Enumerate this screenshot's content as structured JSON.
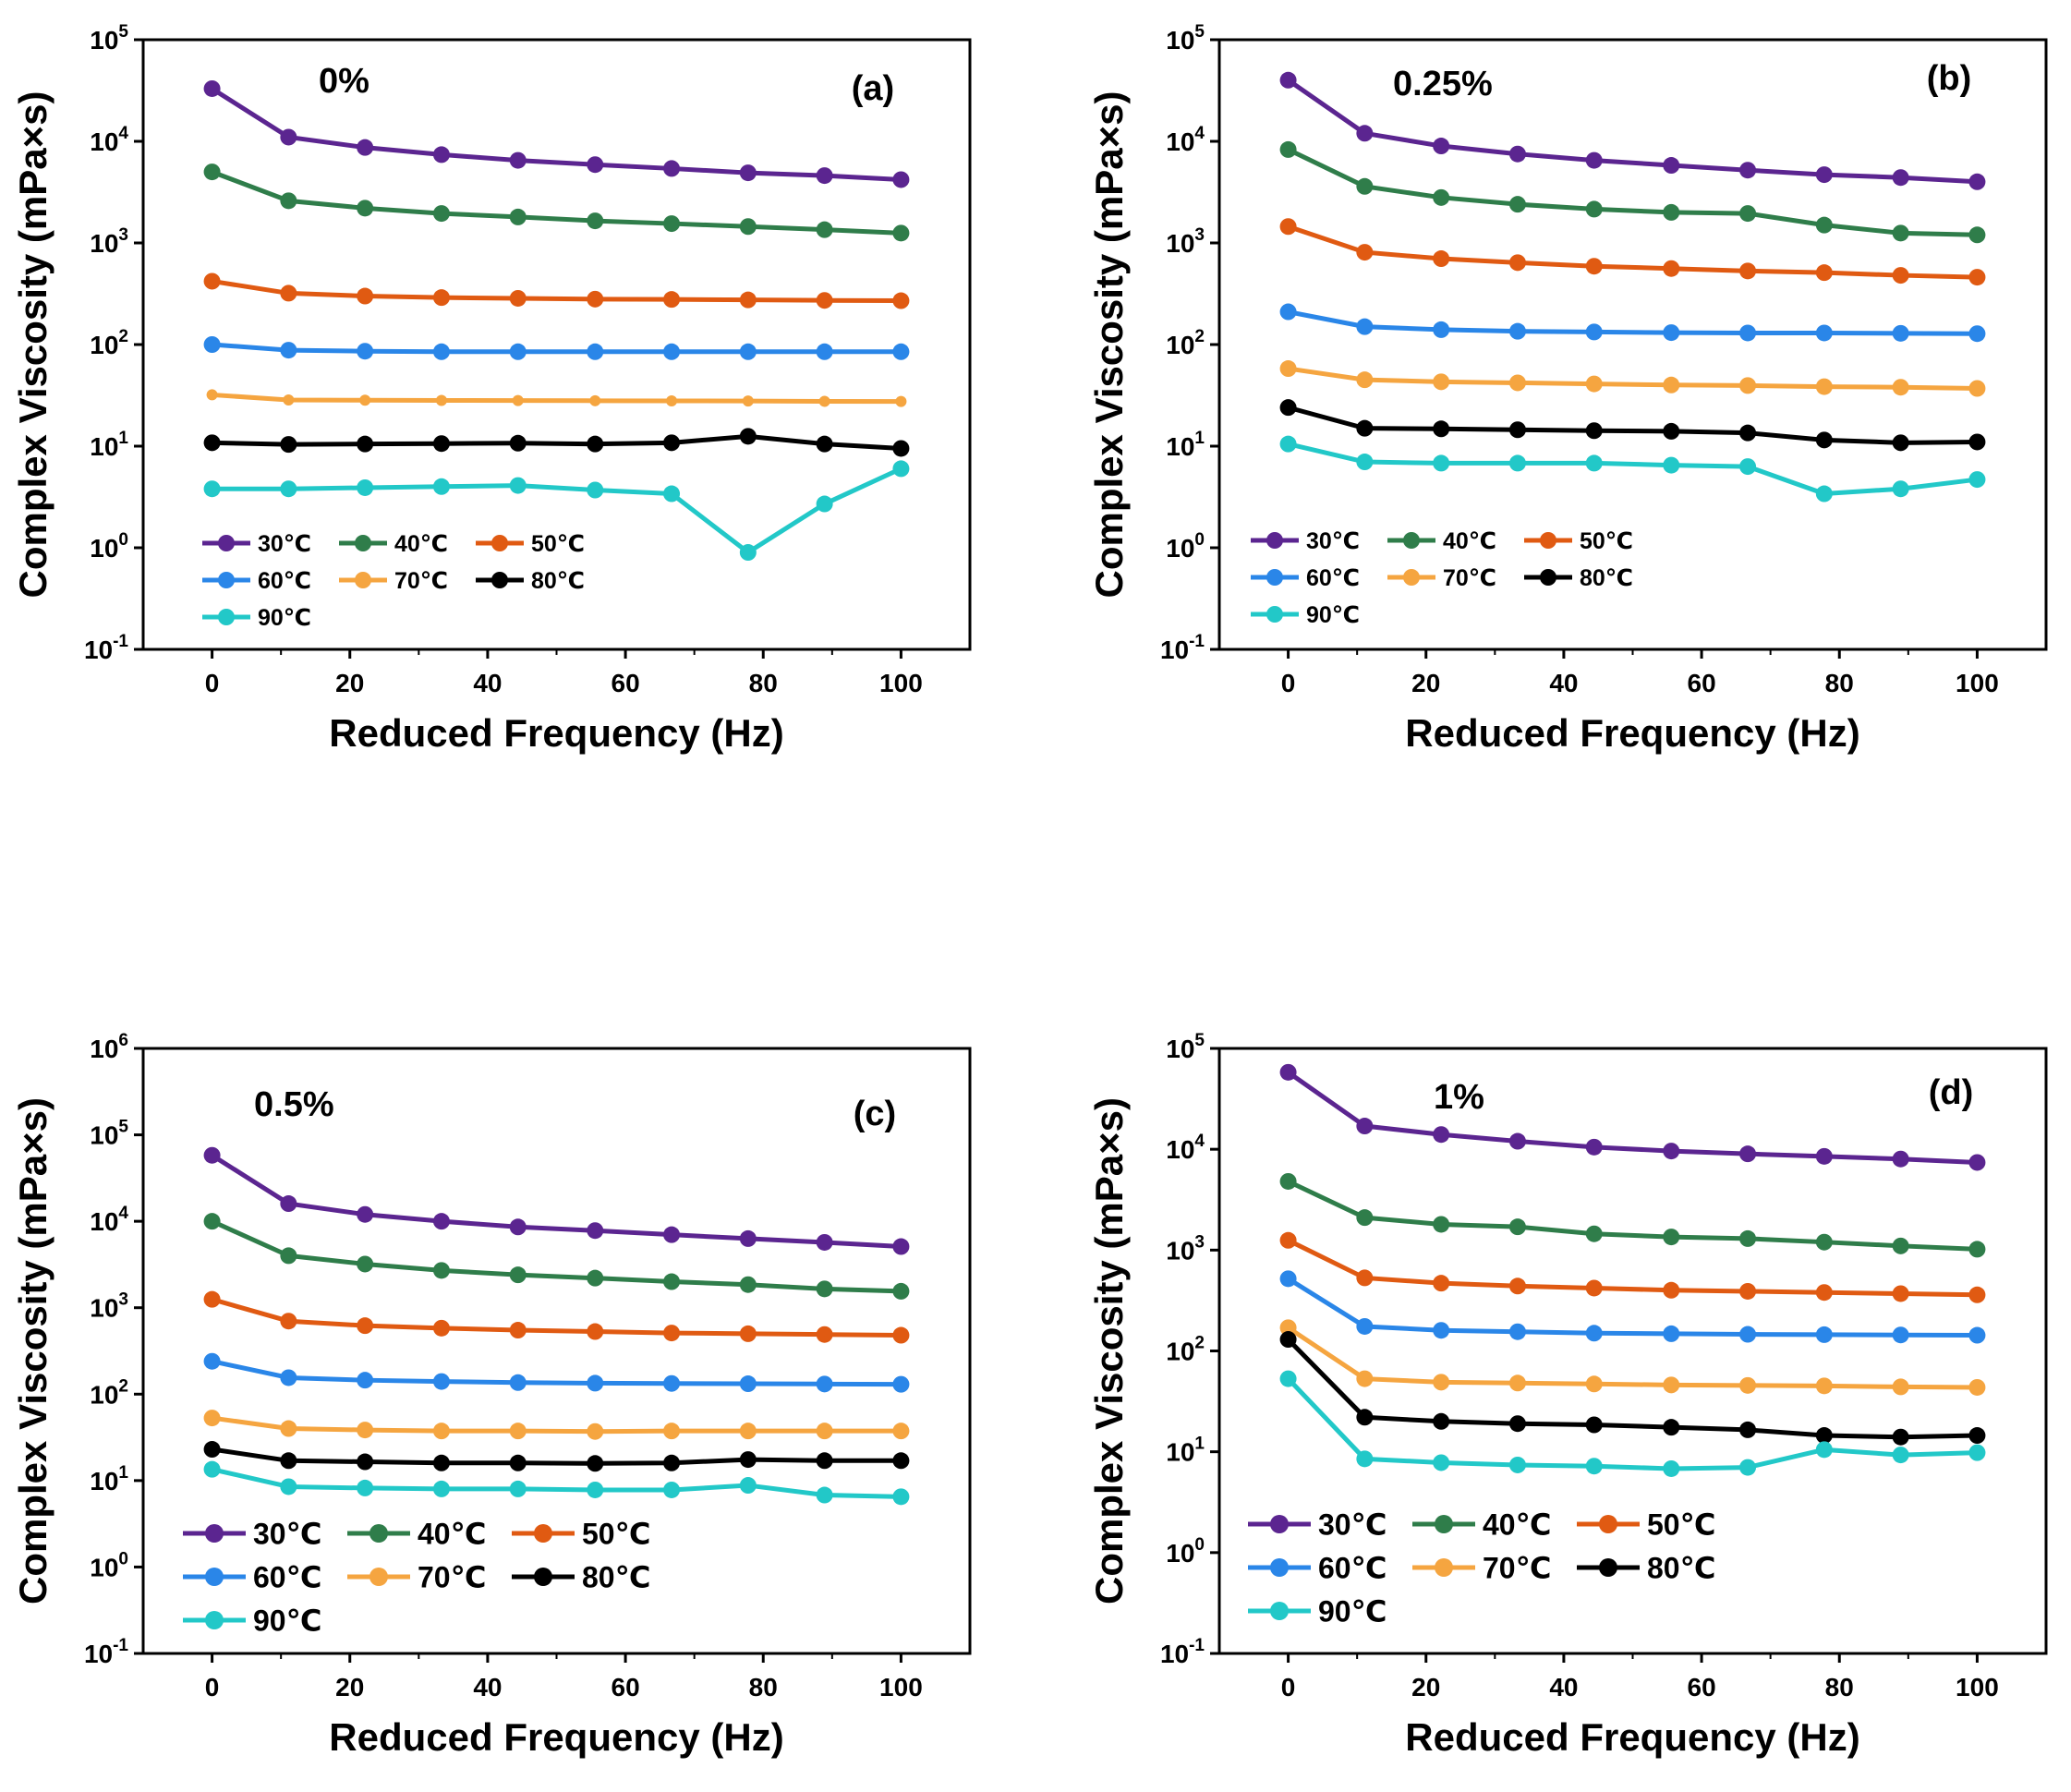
{
  "chart_data": [
    {
      "type": "line",
      "panel_label": "(a)",
      "annotation": "0%",
      "xlabel": "Reduced Frequency (Hz)",
      "ylabel": "Complex Viscosity (mPa×s)",
      "xlim": [
        -10,
        110
      ],
      "xticks": [
        0,
        20,
        40,
        60,
        80,
        100
      ],
      "ylim_log10": [
        -1,
        5
      ],
      "yscale": "log",
      "x": [
        0,
        11.1,
        22.2,
        33.3,
        44.4,
        55.6,
        66.7,
        77.8,
        88.9,
        100
      ],
      "series": [
        {
          "name": "30℃",
          "color": "#5b2590",
          "values": [
            33000,
            11000,
            8700,
            7400,
            6500,
            5900,
            5400,
            4900,
            4600,
            4200
          ]
        },
        {
          "name": "40℃",
          "color": "#2f7d4a",
          "values": [
            5000,
            2600,
            2200,
            1950,
            1800,
            1650,
            1550,
            1450,
            1350,
            1250
          ]
        },
        {
          "name": "50℃",
          "color": "#e05a12",
          "values": [
            420,
            320,
            300,
            290,
            285,
            280,
            278,
            275,
            272,
            270
          ]
        },
        {
          "name": "60℃",
          "color": "#2a86e8",
          "values": [
            100,
            88,
            86,
            85,
            85,
            85,
            85,
            85,
            85,
            85
          ]
        },
        {
          "name": "70℃",
          "color": "#f5a540",
          "values": [
            32,
            28.5,
            28.3,
            28.2,
            28.1,
            28.0,
            27.9,
            27.8,
            27.6,
            27.5
          ]
        },
        {
          "name": "80℃",
          "color": "#000000",
          "values": [
            10.8,
            10.4,
            10.5,
            10.6,
            10.7,
            10.5,
            10.8,
            12.5,
            10.5,
            9.5
          ]
        },
        {
          "name": "90℃",
          "color": "#22c8c8",
          "values": [
            3.8,
            3.8,
            3.9,
            4.0,
            4.1,
            3.7,
            3.4,
            0.9,
            2.7,
            6.0
          ]
        }
      ]
    },
    {
      "type": "line",
      "panel_label": "(b)",
      "annotation": "0.25%",
      "xlabel": "Reduced Frequency (Hz)",
      "ylabel": "Complex Viscosity (mPa×s)",
      "xlim": [
        -10,
        110
      ],
      "xticks": [
        0,
        20,
        40,
        60,
        80,
        100
      ],
      "ylim_log10": [
        -1,
        5
      ],
      "yscale": "log",
      "x": [
        0,
        11.1,
        22.2,
        33.3,
        44.4,
        55.6,
        66.7,
        77.8,
        88.9,
        100
      ],
      "series": [
        {
          "name": "30℃",
          "color": "#5b2590",
          "values": [
            40000,
            12000,
            9000,
            7500,
            6500,
            5800,
            5200,
            4700,
            4400,
            4000
          ]
        },
        {
          "name": "40℃",
          "color": "#2f7d4a",
          "values": [
            8300,
            3600,
            2800,
            2400,
            2150,
            2000,
            1950,
            1500,
            1250,
            1200
          ]
        },
        {
          "name": "50℃",
          "color": "#e05a12",
          "values": [
            1450,
            810,
            700,
            640,
            590,
            560,
            530,
            510,
            480,
            460
          ]
        },
        {
          "name": "60℃",
          "color": "#2a86e8",
          "values": [
            210,
            150,
            140,
            135,
            133,
            131,
            130,
            130,
            129,
            128
          ]
        },
        {
          "name": "70℃",
          "color": "#f5a540",
          "values": [
            58,
            45,
            43,
            42,
            41,
            40,
            39.5,
            38.5,
            38,
            37
          ]
        },
        {
          "name": "80℃",
          "color": "#000000",
          "values": [
            24,
            15,
            14.8,
            14.5,
            14.2,
            14,
            13.5,
            11.5,
            10.8,
            11
          ]
        },
        {
          "name": "90℃",
          "color": "#22c8c8",
          "values": [
            10.5,
            7,
            6.8,
            6.8,
            6.8,
            6.5,
            6.3,
            3.4,
            3.8,
            4.7
          ]
        }
      ]
    },
    {
      "type": "line",
      "panel_label": "(c)",
      "annotation": "0.5%",
      "xlabel": "Reduced Frequency (Hz)",
      "ylabel": "Complex Viscosity (mPa×s)",
      "xlim": [
        -10,
        110
      ],
      "xticks": [
        0,
        20,
        40,
        60,
        80,
        100
      ],
      "ylim_log10": [
        -1,
        6
      ],
      "yscale": "log",
      "x": [
        0,
        11.1,
        22.2,
        33.3,
        44.4,
        55.6,
        66.7,
        77.8,
        88.9,
        100
      ],
      "series": [
        {
          "name": "30℃",
          "color": "#5b2590",
          "values": [
            58000,
            16000,
            12000,
            10000,
            8600,
            7800,
            7000,
            6300,
            5700,
            5100
          ]
        },
        {
          "name": "40℃",
          "color": "#2f7d4a",
          "values": [
            10000,
            4000,
            3200,
            2700,
            2400,
            2200,
            2000,
            1850,
            1650,
            1550
          ]
        },
        {
          "name": "50℃",
          "color": "#e05a12",
          "values": [
            1250,
            700,
            620,
            580,
            550,
            530,
            510,
            500,
            490,
            480
          ]
        },
        {
          "name": "60℃",
          "color": "#2a86e8",
          "values": [
            240,
            155,
            145,
            140,
            136,
            134,
            133,
            132,
            131,
            130
          ]
        },
        {
          "name": "70℃",
          "color": "#f5a540",
          "values": [
            53,
            40,
            38.5,
            37.5,
            37.5,
            37,
            37.5,
            37.5,
            37.5,
            37.5
          ]
        },
        {
          "name": "80℃",
          "color": "#000000",
          "values": [
            23,
            17,
            16.5,
            16,
            16,
            15.8,
            16,
            17.5,
            17,
            17
          ]
        },
        {
          "name": "90℃",
          "color": "#22c8c8",
          "values": [
            13.5,
            8.5,
            8.2,
            8,
            8,
            7.8,
            7.8,
            8.8,
            6.8,
            6.5
          ]
        }
      ]
    },
    {
      "type": "line",
      "panel_label": "(d)",
      "annotation": "1%",
      "xlabel": "Reduced Frequency (Hz)",
      "ylabel": "Complex Viscosity (mPa×s)",
      "xlim": [
        -10,
        110
      ],
      "xticks": [
        0,
        20,
        40,
        60,
        80,
        100
      ],
      "ylim_log10": [
        -1,
        5
      ],
      "yscale": "log",
      "x": [
        0,
        11.1,
        22.2,
        33.3,
        44.4,
        55.6,
        66.7,
        77.8,
        88.9,
        100
      ],
      "series": [
        {
          "name": "30℃",
          "color": "#5b2590",
          "values": [
            58000,
            17000,
            14000,
            12000,
            10500,
            9600,
            9000,
            8500,
            8000,
            7400
          ]
        },
        {
          "name": "40℃",
          "color": "#2f7d4a",
          "values": [
            4800,
            2100,
            1800,
            1700,
            1450,
            1350,
            1300,
            1200,
            1100,
            1020
          ]
        },
        {
          "name": "50℃",
          "color": "#e05a12",
          "values": [
            1250,
            530,
            470,
            440,
            420,
            400,
            390,
            380,
            370,
            360
          ]
        },
        {
          "name": "60℃",
          "color": "#2a86e8",
          "values": [
            520,
            175,
            160,
            155,
            150,
            148,
            146,
            145,
            144,
            143
          ]
        },
        {
          "name": "70℃",
          "color": "#f5a540",
          "values": [
            170,
            53,
            49,
            48,
            47,
            46,
            45.5,
            45,
            44,
            43.5
          ]
        },
        {
          "name": "80℃",
          "color": "#000000",
          "values": [
            130,
            22,
            20,
            19,
            18.5,
            17.5,
            16.5,
            14.5,
            14,
            14.5
          ]
        },
        {
          "name": "90℃",
          "color": "#22c8c8",
          "values": [
            53,
            8.5,
            7.8,
            7.4,
            7.2,
            6.8,
            7,
            10.5,
            9.3,
            9.8
          ]
        }
      ]
    }
  ]
}
